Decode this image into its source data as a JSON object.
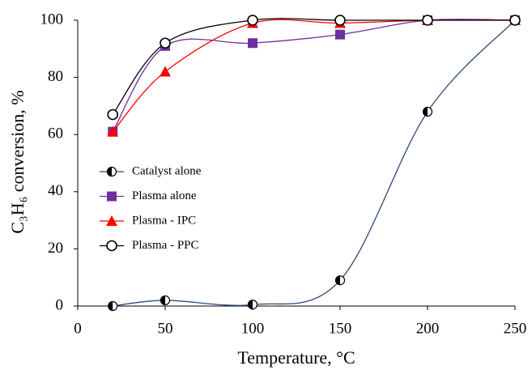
{
  "chart_data": {
    "type": "line",
    "xlabel": "Temperature, °C",
    "ylabel": "C₃H₆ conversion, %",
    "x": [
      20,
      50,
      100,
      150,
      200,
      250
    ],
    "series": [
      {
        "name": "Catalyst alone",
        "color": "#2e4a7d",
        "marker": "half-circle",
        "values": [
          0,
          2,
          0.5,
          9,
          68,
          100
        ]
      },
      {
        "name": "Plasma alone",
        "color": "#7030a0",
        "marker": "square",
        "values": [
          61,
          91,
          92,
          95,
          100,
          100
        ]
      },
      {
        "name": "Plasma - IPC",
        "color": "#ff0000",
        "marker": "triangle",
        "values": [
          61,
          82,
          99,
          99,
          100,
          100
        ]
      },
      {
        "name": "Plasma - PPC",
        "color": "#000000",
        "marker": "open-circle",
        "values": [
          67,
          92,
          100,
          100,
          100,
          100
        ]
      }
    ],
    "xlim": [
      0,
      250
    ],
    "xticks": [
      0,
      50,
      100,
      150,
      200,
      250
    ],
    "ylim": [
      0,
      100
    ],
    "yticks": [
      0,
      20,
      40,
      60,
      80,
      100
    ],
    "smooth": true,
    "grid": false,
    "legend": "center left"
  }
}
